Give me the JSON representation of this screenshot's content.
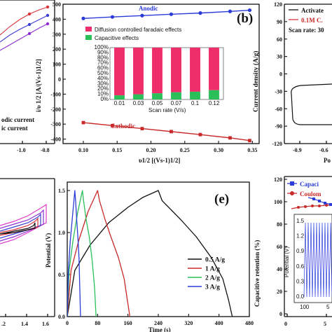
{
  "chart_data": [
    {
      "panel": "top-left (cropped)",
      "type": "line",
      "x_ticks": [
        "-1.0",
        "-0.8"
      ],
      "legend": [
        "odic current",
        "ic current"
      ],
      "colors": [
        "#d9343a",
        "#3b3fcf",
        "#8d2fcf"
      ]
    },
    {
      "panel": "b",
      "panel_label": "(b)",
      "type": "line",
      "xlabel": "υ1/2 [(Vs-1)1/2]",
      "ylabel": "i/υ 1/2 [A/(Vs-1)1/2]",
      "xlim": [
        0.07,
        0.36
      ],
      "ylim": [
        -430,
        500
      ],
      "x_ticks": [
        "0.10",
        "0.15",
        "0.20",
        "0.25",
        "0.30",
        "0.35"
      ],
      "y_ticks": [
        "500",
        "400",
        "300",
        "200",
        "100",
        "0",
        "-100",
        "-200",
        "-300",
        "-400"
      ],
      "series": [
        {
          "name": "Anodic",
          "color": "#2b3bd8",
          "x": [
            0.1,
            0.143,
            0.187,
            0.23,
            0.273,
            0.317,
            0.346
          ],
          "y": [
            405,
            415,
            424,
            433,
            441,
            452,
            460
          ]
        },
        {
          "name": "Cathodic",
          "color": "#c82a2a",
          "x": [
            0.1,
            0.143,
            0.187,
            0.23,
            0.273,
            0.317,
            0.346
          ],
          "y": [
            -290,
            -310,
            -330,
            -350,
            -370,
            -392,
            -410
          ]
        }
      ],
      "inset": {
        "type": "bar",
        "stacked": true,
        "xlabel": "Scan rate (V/s)",
        "categories": [
          "0.01",
          "0.03",
          "0.05",
          "0.07",
          "0.1",
          "0.12"
        ],
        "y_ticks": [
          "100%",
          "90%",
          "80%",
          "70%",
          "60%",
          "50%",
          "40%",
          "30%",
          "20%",
          "10%",
          "0%"
        ],
        "series": [
          {
            "name": "Capacitive effects",
            "color": "#2bbf5a",
            "values": [
              8,
              10,
              12,
              14,
              15,
              18
            ]
          },
          {
            "name": "Diffusion controlled faradaic effects",
            "color": "#ee2e6a",
            "values": [
              92,
              90,
              88,
              86,
              85,
              82
            ]
          }
        ]
      }
    },
    {
      "panel": "top-right (cropped)",
      "type": "line",
      "ylabel": "Current density (A/g)",
      "ylim": [
        -120,
        120
      ],
      "y_ticks": [
        "120",
        "90",
        "60",
        "30",
        "0",
        "-30",
        "-60",
        "-90",
        "-120"
      ],
      "x_ticks": [
        "-0.9",
        "-0.6"
      ],
      "legend": [
        "Activate",
        "0.1M C."
      ],
      "annotation": "Scan rate: 30",
      "xlabel_fragment": "Po"
    },
    {
      "panel": "bottom-left (cropped)",
      "type": "line",
      "x_ticks": [
        ".2",
        "1.4",
        "1.6"
      ],
      "colors": [
        "#111111",
        "#d9343a",
        "#3b3fcf",
        "#8d2fcf",
        "#e03ac8"
      ]
    },
    {
      "panel": "e",
      "panel_label": "(e)",
      "type": "line",
      "xlabel": "Time (s)",
      "ylabel": "Potential (V)",
      "xlim": [
        0,
        480
      ],
      "ylim": [
        0,
        1.6
      ],
      "x_ticks": [
        "0",
        "80",
        "160",
        "240",
        "320",
        "400",
        "480"
      ],
      "y_ticks": [
        "0.0",
        "0.5",
        "1.0",
        "1.5"
      ],
      "series": [
        {
          "name": "0.5 A/g",
          "color": "#111111",
          "x": [
            0,
            20,
            60,
            110,
            160,
            200,
            240,
            250,
            300,
            340,
            380,
            410,
            425,
            435
          ],
          "y": [
            0,
            0.55,
            0.85,
            1.12,
            1.3,
            1.42,
            1.5,
            1.38,
            1.15,
            0.95,
            0.7,
            0.45,
            0.2,
            0
          ]
        },
        {
          "name": "1 A/g",
          "color": "#c82a2a",
          "x": [
            0,
            10,
            30,
            55,
            80,
            85,
            100,
            115,
            135,
            150,
            160,
            165
          ],
          "y": [
            0,
            0.55,
            0.9,
            1.25,
            1.5,
            1.38,
            1.15,
            0.95,
            0.7,
            0.45,
            0.15,
            0
          ]
        },
        {
          "name": "2 A/g",
          "color": "#2bbf5a",
          "x": [
            0,
            5,
            15,
            28,
            40,
            43,
            50,
            58,
            65,
            72,
            76
          ],
          "y": [
            0,
            0.55,
            0.9,
            1.25,
            1.5,
            1.38,
            1.15,
            0.95,
            0.7,
            0.35,
            0
          ]
        },
        {
          "name": "3 A/g",
          "color": "#2b3bd8",
          "x": [
            0,
            3,
            8,
            15,
            20,
            22,
            25,
            28,
            31,
            33,
            35
          ],
          "y": [
            0,
            0.55,
            0.9,
            1.25,
            1.5,
            1.38,
            1.15,
            0.95,
            0.7,
            0.35,
            0
          ]
        }
      ]
    },
    {
      "panel": "bottom-right (cropped)",
      "type": "line",
      "ylabel": "Capacitive retention (%)",
      "ylim": [
        0,
        120
      ],
      "y_ticks": [
        "120",
        "100",
        "80",
        "60",
        "40",
        "20",
        "0"
      ],
      "legend": [
        "Capaci",
        "Coulom"
      ],
      "colors": [
        "#2b3bd8",
        "#c82a2a"
      ],
      "inset": {
        "ylabel": "Potential (V)",
        "y_ticks": [
          "1.5",
          "1.2",
          "0.9",
          "0.6",
          "0.3",
          "0.0"
        ],
        "x_ticks": [
          "100",
          "5"
        ]
      },
      "x_ticks": [
        "0",
        "5"
      ]
    }
  ]
}
